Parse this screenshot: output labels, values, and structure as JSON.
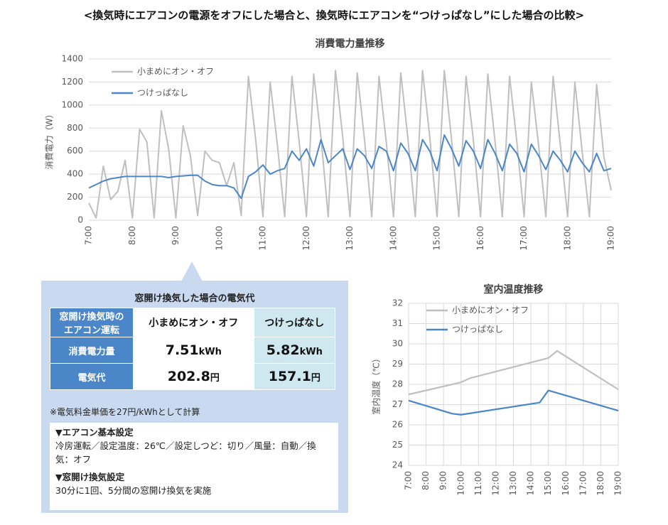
{
  "header": {
    "title": "<換気時にエアコンの電源をオフにした場合と、換気時にエアコンを“つけっぱなし”にした場合の比較>"
  },
  "chart_data": [
    {
      "type": "line",
      "title": "消費電力量推移",
      "y_label": "消費電力（W）",
      "x": [
        420,
        430,
        440,
        450,
        460,
        470,
        480,
        490,
        500,
        510,
        520,
        530,
        540,
        550,
        560,
        570,
        580,
        590,
        600,
        610,
        620,
        630,
        640,
        650,
        660,
        670,
        680,
        690,
        700,
        710,
        720,
        730,
        740,
        750,
        760,
        770,
        780,
        790,
        800,
        810,
        820,
        830,
        840,
        850,
        860,
        870,
        880,
        890,
        900,
        910,
        920,
        930,
        940,
        950,
        960,
        970,
        980,
        990,
        1000,
        1010,
        1020,
        1030,
        1040,
        1050,
        1060,
        1070,
        1080,
        1090,
        1100,
        1110,
        1120,
        1130,
        1140
      ],
      "series": [
        {
          "name": "小まめにオン・オフ",
          "color": "#bfbfbf",
          "values": [
            150,
            20,
            470,
            180,
            250,
            520,
            20,
            790,
            680,
            20,
            950,
            620,
            20,
            820,
            560,
            40,
            600,
            520,
            500,
            300,
            500,
            40,
            1250,
            700,
            30,
            1200,
            650,
            30,
            1250,
            680,
            30,
            1270,
            720,
            30,
            1300,
            720,
            30,
            1280,
            700,
            30,
            1250,
            680,
            30,
            1280,
            700,
            30,
            1300,
            720,
            30,
            1300,
            700,
            30,
            1250,
            700,
            30,
            1270,
            680,
            30,
            1250,
            680,
            30,
            1200,
            650,
            30,
            1250,
            650,
            30,
            1200,
            600,
            30,
            1180,
            550,
            260
          ]
        },
        {
          "name": "つけっぱなし",
          "color": "#4a86c8",
          "values": [
            280,
            310,
            340,
            360,
            370,
            380,
            380,
            380,
            380,
            380,
            380,
            370,
            380,
            385,
            390,
            390,
            340,
            310,
            300,
            300,
            280,
            190,
            380,
            420,
            480,
            400,
            430,
            450,
            600,
            520,
            620,
            470,
            700,
            500,
            560,
            620,
            440,
            620,
            560,
            450,
            640,
            600,
            430,
            670,
            580,
            430,
            700,
            600,
            430,
            740,
            620,
            470,
            690,
            600,
            450,
            700,
            580,
            430,
            660,
            580,
            420,
            660,
            560,
            440,
            600,
            520,
            420,
            600,
            500,
            420,
            580,
            430,
            450
          ]
        }
      ],
      "xlim": [
        420,
        1140
      ],
      "xticks": [
        {
          "value": 420,
          "label": "7:00"
        },
        {
          "value": 480,
          "label": "8:00"
        },
        {
          "value": 540,
          "label": "9:00"
        },
        {
          "value": 600,
          "label": "10:00"
        },
        {
          "value": 660,
          "label": "11:00"
        },
        {
          "value": 720,
          "label": "12:00"
        },
        {
          "value": 780,
          "label": "13:00"
        },
        {
          "value": 840,
          "label": "14:00"
        },
        {
          "value": 900,
          "label": "15:00"
        },
        {
          "value": 960,
          "label": "16:00"
        },
        {
          "value": 1020,
          "label": "17:00"
        },
        {
          "value": 1080,
          "label": "18:00"
        },
        {
          "value": 1140,
          "label": "19:00"
        }
      ],
      "ylim": [
        0,
        1400
      ],
      "yticks": [
        0,
        200,
        400,
        600,
        800,
        1000,
        1200,
        1400
      ],
      "grid": "y",
      "legend": "upper left"
    },
    {
      "type": "line",
      "title": "室内温度推移",
      "y_label": "室内温度（℃）",
      "series": [
        {
          "name": "小まめにオン・オフ",
          "color": "#bfbfbf",
          "x": [
            420,
            600,
            630,
            900,
            930,
            1140
          ],
          "values": [
            27.5,
            28.1,
            28.3,
            29.3,
            29.65,
            27.75
          ]
        },
        {
          "name": "つけっぱなし",
          "color": "#4a86c8",
          "x": [
            420,
            570,
            600,
            870,
            900,
            1140
          ],
          "values": [
            27.2,
            26.55,
            26.5,
            27.1,
            27.7,
            26.7
          ]
        }
      ],
      "xlim": [
        420,
        1140
      ],
      "xticks": [
        {
          "value": 420,
          "label": "7:00"
        },
        {
          "value": 480,
          "label": "8:00"
        },
        {
          "value": 540,
          "label": "9:00"
        },
        {
          "value": 600,
          "label": "10:00"
        },
        {
          "value": 660,
          "label": "11:00"
        },
        {
          "value": 720,
          "label": "12:00"
        },
        {
          "value": 780,
          "label": "13:00"
        },
        {
          "value": 840,
          "label": "14:00"
        },
        {
          "value": 900,
          "label": "15:00"
        },
        {
          "value": 960,
          "label": "16:00"
        },
        {
          "value": 1020,
          "label": "17:00"
        },
        {
          "value": 1080,
          "label": "18:00"
        },
        {
          "value": 1140,
          "label": "19:00"
        }
      ],
      "ylim": [
        24,
        32
      ],
      "yticks": [
        24,
        25,
        26,
        27,
        28,
        29,
        30,
        31,
        32
      ],
      "grid": "both",
      "legend": "upper left"
    }
  ],
  "panel": {
    "title": "窓開け換気した場合の電気代",
    "table": {
      "header": [
        [
          "窓開け換気時の",
          "エアコン運転"
        ],
        "小まめにオン・オフ",
        "つけっぱなし"
      ],
      "rows": [
        [
          "消費電力量",
          {
            "value": 7.51,
            "unit": "kWh"
          },
          {
            "value": 5.82,
            "unit": "kWh"
          }
        ],
        [
          "電気代",
          {
            "value": 202.8,
            "unit": "円"
          },
          {
            "value": 157.1,
            "unit": "円"
          }
        ]
      ]
    },
    "note": "※電気料金単価を27円/kWhとして計算",
    "settings": [
      {
        "heading": "▼エアコン基本設定",
        "text": "冷房運転／設定温度：26℃／設定しつど：切り／風量：自動／換気：オフ"
      },
      {
        "heading": "▼窓開け換気設定",
        "text": "30分に1回、5分間の窓開け換気を実施"
      }
    ]
  }
}
